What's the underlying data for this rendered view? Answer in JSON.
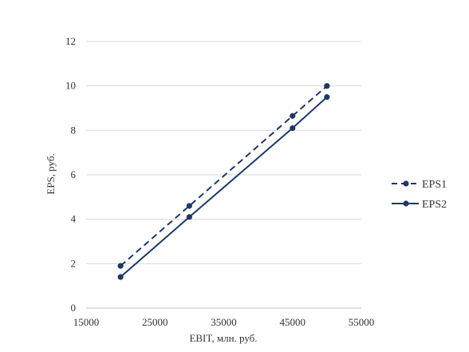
{
  "chart_data": {
    "type": "line",
    "title": "",
    "xlabel": "EBIT, млн. руб.",
    "ylabel": "EPS, руб.",
    "xlim": [
      15000,
      55000
    ],
    "ylim": [
      0,
      12
    ],
    "xticks": [
      "15000",
      "25000",
      "35000",
      "45000",
      "55000"
    ],
    "yticks": [
      "0",
      "2",
      "4",
      "6",
      "8",
      "10",
      "12"
    ],
    "grid": "horizontal",
    "legend": "right",
    "series": [
      {
        "name": "EPS1",
        "style": "dashed",
        "color": "#1f3864",
        "x": [
          20000,
          30000,
          45000,
          50000
        ],
        "y": [
          1.9,
          4.6,
          8.65,
          10.0
        ]
      },
      {
        "name": "EPS2",
        "style": "solid",
        "color": "#1f3864",
        "x": [
          20000,
          30000,
          45000,
          50000
        ],
        "y": [
          1.4,
          4.1,
          8.1,
          9.5
        ]
      }
    ]
  }
}
